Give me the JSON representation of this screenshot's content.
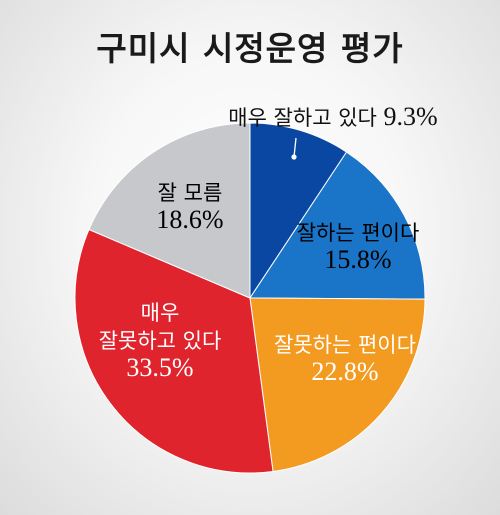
{
  "title": "구미시 시정운영 평가",
  "chart_data": {
    "type": "pie",
    "title": "구미시 시정운영 평가",
    "start_angle_deg": 0,
    "direction": "clockwise",
    "slices": [
      {
        "label_lines": [
          "매우 잘하고 있다"
        ],
        "value": 9.3,
        "value_text": "9.3%",
        "color": "#0a47a3",
        "text_color": "#ffffff"
      },
      {
        "label_lines": [
          "잘하는 편이다"
        ],
        "value": 15.8,
        "value_text": "15.8%",
        "color": "#1a75c9",
        "text_color": "#000000"
      },
      {
        "label_lines": [
          "잘못하는 편이다"
        ],
        "value": 22.8,
        "value_text": "22.8%",
        "color": "#f39a21",
        "text_color": "#ffffff"
      },
      {
        "label_lines": [
          "매우",
          "잘못하고 있다"
        ],
        "value": 33.5,
        "value_text": "33.5%",
        "color": "#e0242e",
        "text_color": "#ffffff"
      },
      {
        "label_lines": [
          "잘 모름"
        ],
        "value": 18.6,
        "value_text": "18.6%",
        "color": "#c7c8cc",
        "text_color": "#000000"
      }
    ]
  }
}
